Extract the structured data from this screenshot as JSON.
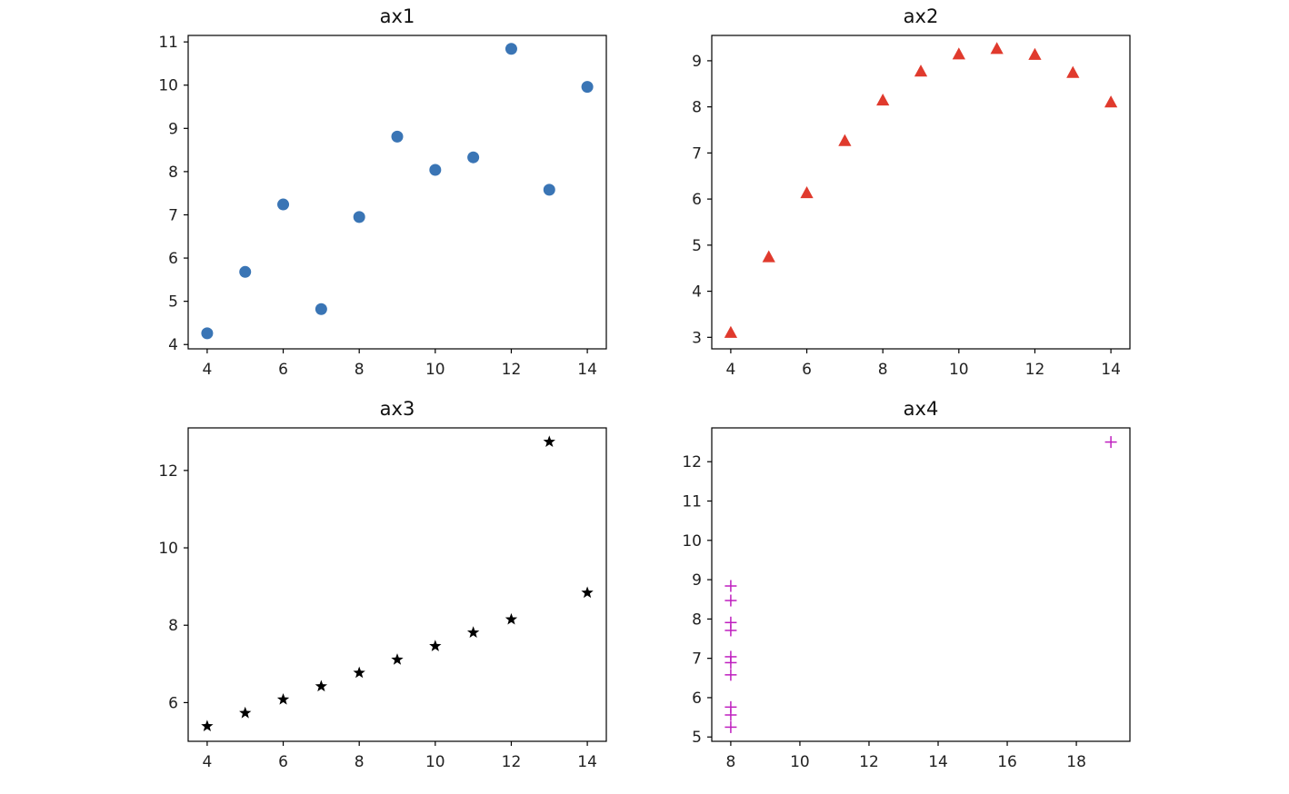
{
  "chart_data": [
    {
      "type": "scatter",
      "title": "ax1",
      "marker": "circle",
      "color": "#3a75b5",
      "x": [
        4,
        5,
        6,
        7,
        8,
        9,
        10,
        11,
        12,
        13,
        14
      ],
      "y": [
        4.26,
        5.68,
        7.24,
        4.82,
        6.95,
        8.81,
        8.04,
        8.33,
        10.84,
        7.58,
        9.96
      ],
      "xlim": [
        3.5,
        14.5
      ],
      "ylim": [
        3.9,
        11.15
      ],
      "xticks": [
        4,
        6,
        8,
        10,
        12,
        14
      ],
      "yticks": [
        4,
        5,
        6,
        7,
        8,
        9,
        10,
        11
      ]
    },
    {
      "type": "scatter",
      "title": "ax2",
      "marker": "triangle",
      "color": "#e03a2d",
      "x": [
        4,
        5,
        6,
        7,
        8,
        9,
        10,
        11,
        12,
        13,
        14
      ],
      "y": [
        3.1,
        4.74,
        6.13,
        7.26,
        8.14,
        8.77,
        9.14,
        9.26,
        9.13,
        8.74,
        8.1
      ],
      "xlim": [
        3.5,
        14.5
      ],
      "ylim": [
        2.75,
        9.55
      ],
      "xticks": [
        4,
        6,
        8,
        10,
        12,
        14
      ],
      "yticks": [
        3,
        4,
        5,
        6,
        7,
        8,
        9
      ]
    },
    {
      "type": "scatter",
      "title": "ax3",
      "marker": "star",
      "color": "#000000",
      "x": [
        4,
        5,
        6,
        7,
        8,
        9,
        10,
        11,
        12,
        13,
        14
      ],
      "y": [
        5.39,
        5.73,
        6.08,
        6.42,
        6.77,
        7.11,
        7.46,
        7.81,
        8.15,
        12.74,
        8.84
      ],
      "xlim": [
        3.5,
        14.5
      ],
      "ylim": [
        5.0,
        13.1
      ],
      "xticks": [
        4,
        6,
        8,
        10,
        12,
        14
      ],
      "yticks": [
        6,
        8,
        10,
        12
      ]
    },
    {
      "type": "scatter",
      "title": "ax4",
      "marker": "plus",
      "color": "#bf1fbf",
      "x": [
        8,
        8,
        8,
        8,
        8,
        8,
        8,
        19,
        8,
        8,
        8
      ],
      "y": [
        6.58,
        5.76,
        7.71,
        8.84,
        8.47,
        7.04,
        5.25,
        12.5,
        5.56,
        7.91,
        6.89
      ],
      "xlim": [
        7.45,
        19.55
      ],
      "ylim": [
        4.89,
        12.86
      ],
      "xticks": [
        8,
        10,
        12,
        14,
        16,
        18
      ],
      "yticks": [
        5,
        6,
        7,
        8,
        9,
        10,
        11,
        12
      ]
    }
  ]
}
